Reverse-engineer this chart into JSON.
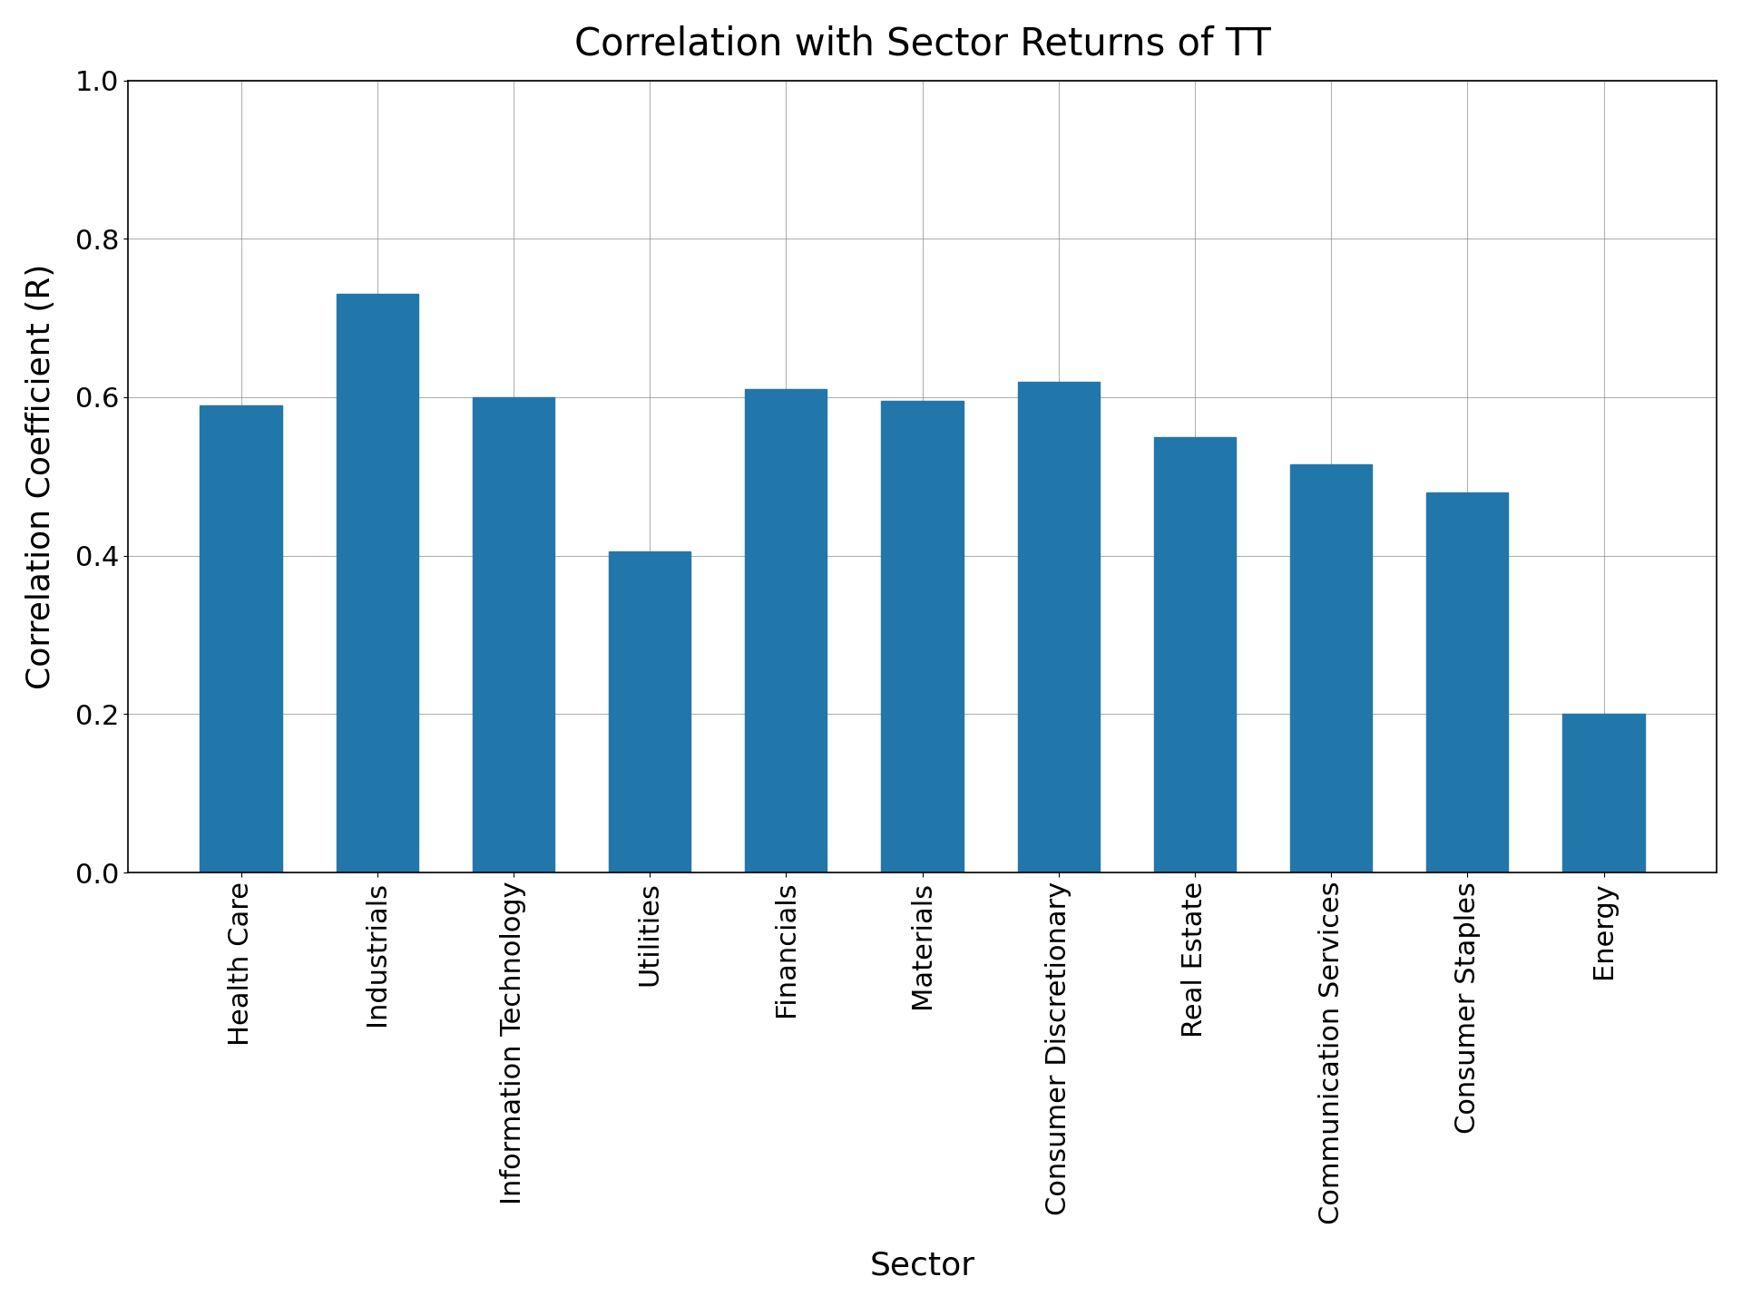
{
  "title": "Correlation with Sector Returns of TT",
  "xlabel": "Sector",
  "ylabel": "Correlation Coefficient (R)",
  "categories": [
    "Health Care",
    "Industrials",
    "Information Technology",
    "Utilities",
    "Financials",
    "Materials",
    "Consumer Discretionary",
    "Real Estate",
    "Communication Services",
    "Consumer Staples",
    "Energy"
  ],
  "values": [
    0.59,
    0.73,
    0.6,
    0.405,
    0.61,
    0.595,
    0.62,
    0.55,
    0.515,
    0.48,
    0.2
  ],
  "bar_color": "#2277aa",
  "ylim": [
    0.0,
    1.0
  ],
  "yticks": [
    0.0,
    0.2,
    0.4,
    0.6,
    0.8,
    1.0
  ],
  "background_color": "#ffffff",
  "grid": true,
  "title_fontsize": 30,
  "label_fontsize": 26,
  "tick_fontsize": 22,
  "xtick_fontsize": 22
}
